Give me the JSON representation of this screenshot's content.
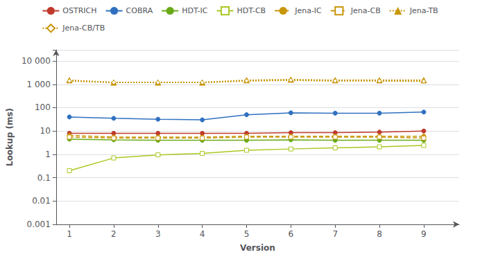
{
  "chart_data": {
    "type": "line",
    "xlabel": "Version",
    "ylabel": "Lookup (ms)",
    "x": [
      1,
      2,
      3,
      4,
      5,
      6,
      7,
      8,
      9
    ],
    "series": [
      {
        "name": "OSTRICH",
        "color": "#c0392b",
        "marker": "circle",
        "line_style": "solid",
        "values": [
          8,
          8,
          8,
          8,
          8,
          8.5,
          8.5,
          9,
          10
        ]
      },
      {
        "name": "COBRA",
        "color": "#3070c0",
        "marker": "circle",
        "line_style": "solid",
        "values": [
          40,
          35,
          32,
          30,
          50,
          60,
          58,
          58,
          65
        ]
      },
      {
        "name": "HDT-IC",
        "color": "#6aaa18",
        "marker": "circle",
        "line_style": "solid",
        "values": [
          4.5,
          4.2,
          4.0,
          4.0,
          4.0,
          4.2,
          4.0,
          4.0,
          4.0
        ]
      },
      {
        "name": "HDT-CB",
        "color": "#a8c820",
        "marker": "open-square",
        "line_style": "solid",
        "values": [
          0.2,
          0.7,
          0.95,
          1.1,
          1.5,
          1.7,
          1.9,
          2.1,
          2.4
        ]
      },
      {
        "name": "Jena-IC",
        "color": "#c8960a",
        "marker": "circle",
        "line_style": "dashed",
        "values": [
          6.5,
          5.5,
          5.5,
          5.5,
          6.0,
          6.0,
          6.0,
          6.0,
          6.0
        ]
      },
      {
        "name": "Jena-CB",
        "color": "#c8960a",
        "marker": "open-square",
        "line_style": "dashed",
        "values": [
          5.5,
          5.0,
          5.0,
          5.0,
          5.5,
          5.5,
          5.5,
          5.5,
          5.0
        ]
      },
      {
        "name": "Jena-TB",
        "color": "#c8960a",
        "marker": "triangle",
        "line_style": "dotted",
        "values": [
          1500,
          1200,
          1200,
          1200,
          1500,
          1600,
          1500,
          1500,
          1500
        ]
      },
      {
        "name": "Jena-CB/TB",
        "color": "#c8960a",
        "marker": "open-diamond",
        "line_style": "dotted",
        "values": [
          1400,
          1200,
          1200,
          1200,
          1400,
          1500,
          1400,
          1400,
          1350
        ]
      }
    ],
    "xlim": [
      0.7,
      9.8
    ],
    "xticks": [
      1,
      2,
      3,
      4,
      5,
      6,
      7,
      8,
      9
    ],
    "ylim": [
      0.001,
      30000
    ],
    "yticks": [
      0.001,
      0.01,
      0.1,
      1,
      10,
      100,
      {
        "value": 1000,
        "label": "1 000"
      },
      {
        "value": 10000,
        "label": "10 000"
      }
    ],
    "log": "y",
    "grid": true,
    "legend": "top"
  }
}
